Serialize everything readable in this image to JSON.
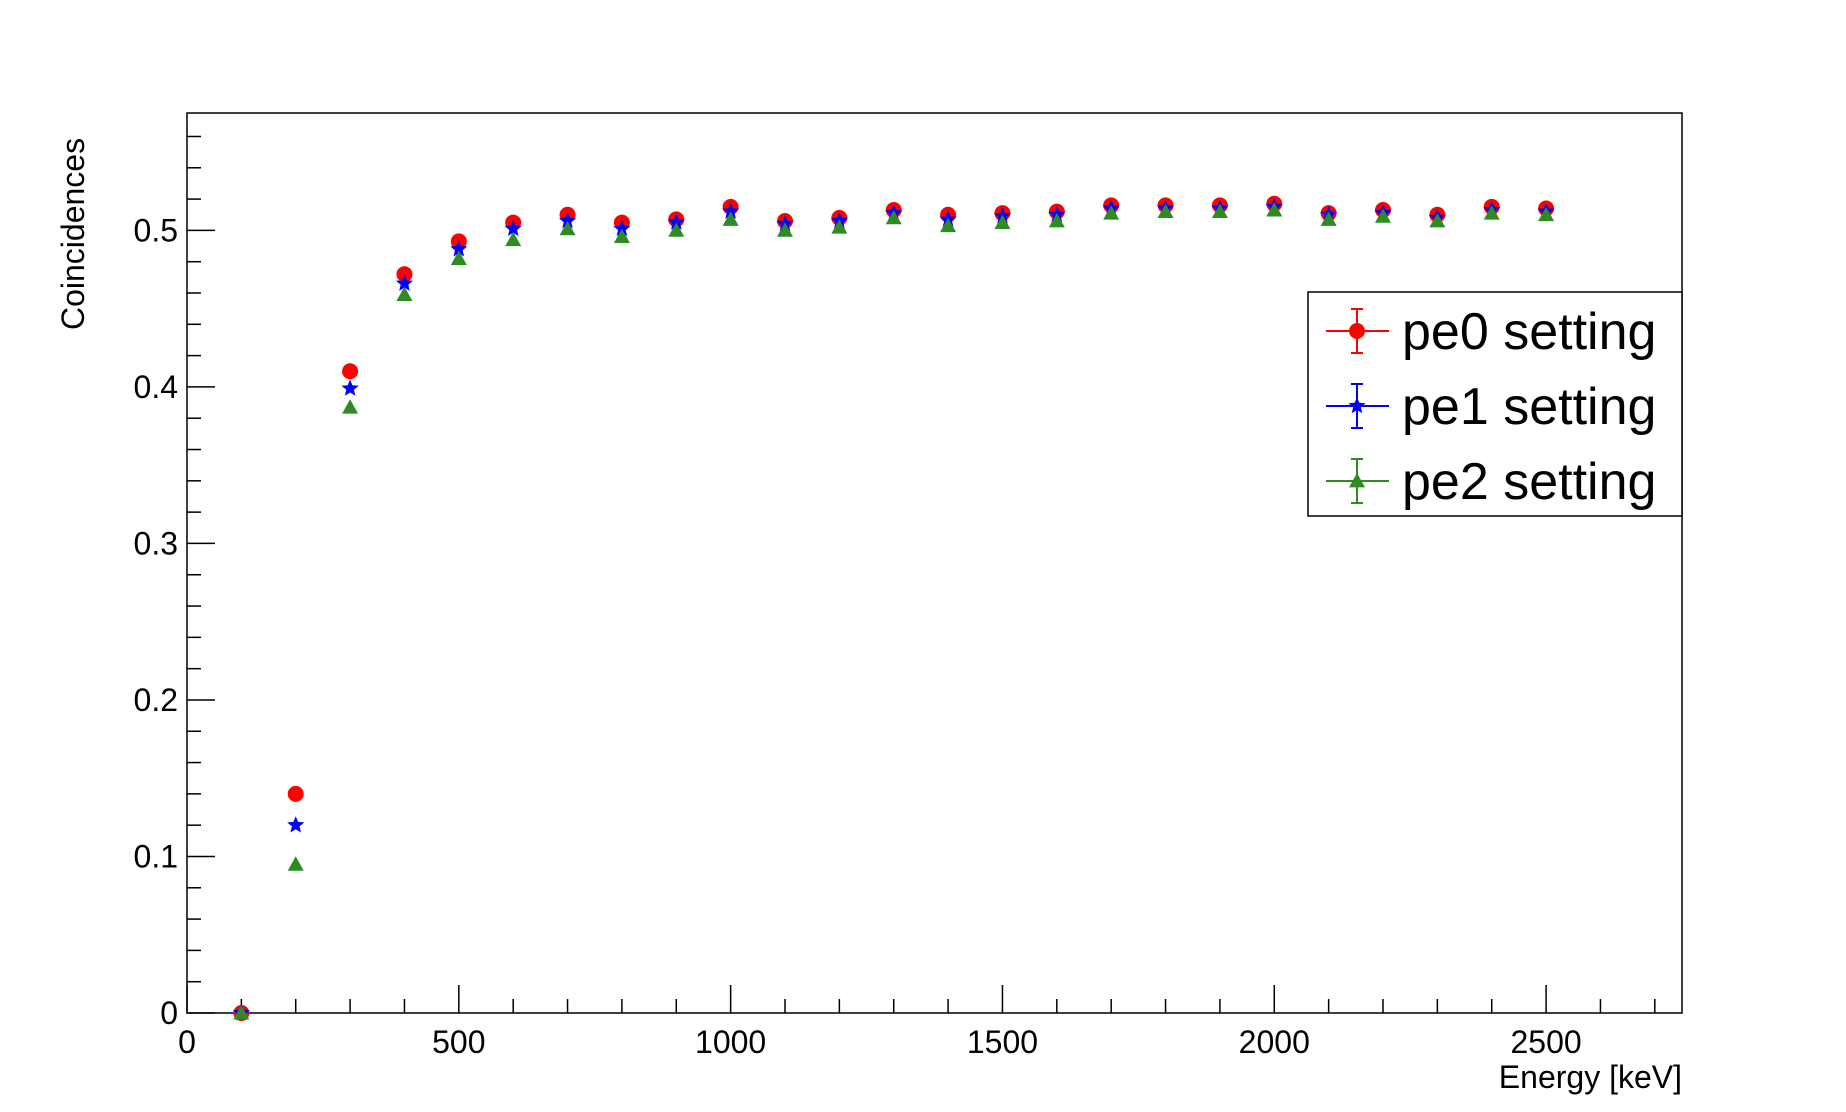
{
  "chart_data": {
    "type": "scatter",
    "title": "",
    "xlabel": "Energy [keV]",
    "ylabel": "Coincidences",
    "xlim": [
      0,
      2750
    ],
    "ylim": [
      0,
      0.575
    ],
    "x_ticks": [
      "0",
      "500",
      "1000",
      "1500",
      "2000",
      "2500"
    ],
    "y_ticks": [
      "0",
      "0.1",
      "0.2",
      "0.3",
      "0.4",
      "0.5"
    ],
    "grid": false,
    "legend_position": "right",
    "x": [
      100,
      200,
      300,
      400,
      500,
      600,
      700,
      800,
      900,
      1000,
      1100,
      1200,
      1300,
      1400,
      1500,
      1600,
      1700,
      1800,
      1900,
      2000,
      2100,
      2200,
      2300,
      2400,
      2500
    ],
    "series": [
      {
        "name": "pe0 setting",
        "color": "#ff0000",
        "marker": "circle",
        "values": [
          0.0,
          0.14,
          0.41,
          0.472,
          0.493,
          0.505,
          0.51,
          0.505,
          0.507,
          0.515,
          0.506,
          0.508,
          0.513,
          0.51,
          0.511,
          0.512,
          0.516,
          0.516,
          0.516,
          0.517,
          0.511,
          0.513,
          0.51,
          0.515,
          0.514
        ]
      },
      {
        "name": "pe1 setting",
        "color": "#0000ff",
        "marker": "star",
        "values": [
          0.0,
          0.12,
          0.399,
          0.466,
          0.488,
          0.501,
          0.506,
          0.501,
          0.505,
          0.512,
          0.504,
          0.506,
          0.511,
          0.507,
          0.509,
          0.51,
          0.514,
          0.514,
          0.514,
          0.515,
          0.51,
          0.511,
          0.508,
          0.513,
          0.512
        ]
      },
      {
        "name": "pe2 setting",
        "color": "#2e8b22",
        "marker": "triangle",
        "values": [
          0.0,
          0.095,
          0.387,
          0.459,
          0.482,
          0.494,
          0.501,
          0.496,
          0.5,
          0.507,
          0.5,
          0.502,
          0.508,
          0.503,
          0.505,
          0.506,
          0.511,
          0.512,
          0.512,
          0.513,
          0.507,
          0.509,
          0.506,
          0.511,
          0.51
        ]
      }
    ]
  }
}
